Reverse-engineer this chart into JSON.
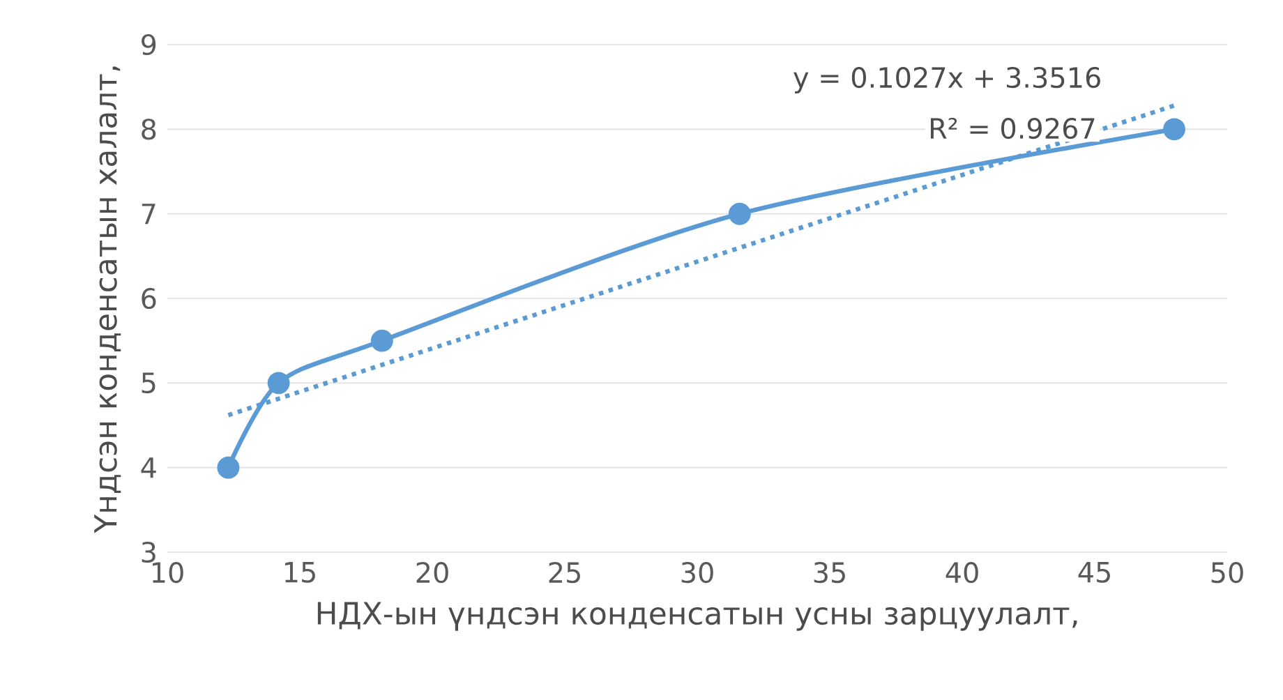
{
  "chart_data": {
    "type": "line",
    "xlabel": "НДХ-ын үндсэн конденсатын усны зарцуулалт,",
    "ylabel": "Үндсэн конденсатын халалт,",
    "xlim": [
      10,
      50
    ],
    "xticks": [
      10,
      15,
      20,
      25,
      30,
      35,
      40,
      45,
      50
    ],
    "ylim": [
      3,
      9
    ],
    "yticks": [
      3,
      4,
      5,
      6,
      7,
      8,
      9
    ],
    "grid": "y",
    "series": [
      {
        "color": "#5b9bd5",
        "x": [
          12.3,
          14.2,
          18.1,
          31.6,
          48
        ],
        "values": [
          4,
          5,
          5.5,
          7,
          8
        ],
        "marker": "circle",
        "line_style": "solid"
      },
      {
        "type": "line",
        "color": "#5b9bd5",
        "x": [
          12.3,
          48
        ],
        "values": [
          4.62,
          8.28
        ],
        "marker": "none",
        "line_style": "dotted"
      }
    ],
    "annotations": [
      "y = 0.1027x + 3.3516",
      "R² = 0.9267"
    ]
  }
}
